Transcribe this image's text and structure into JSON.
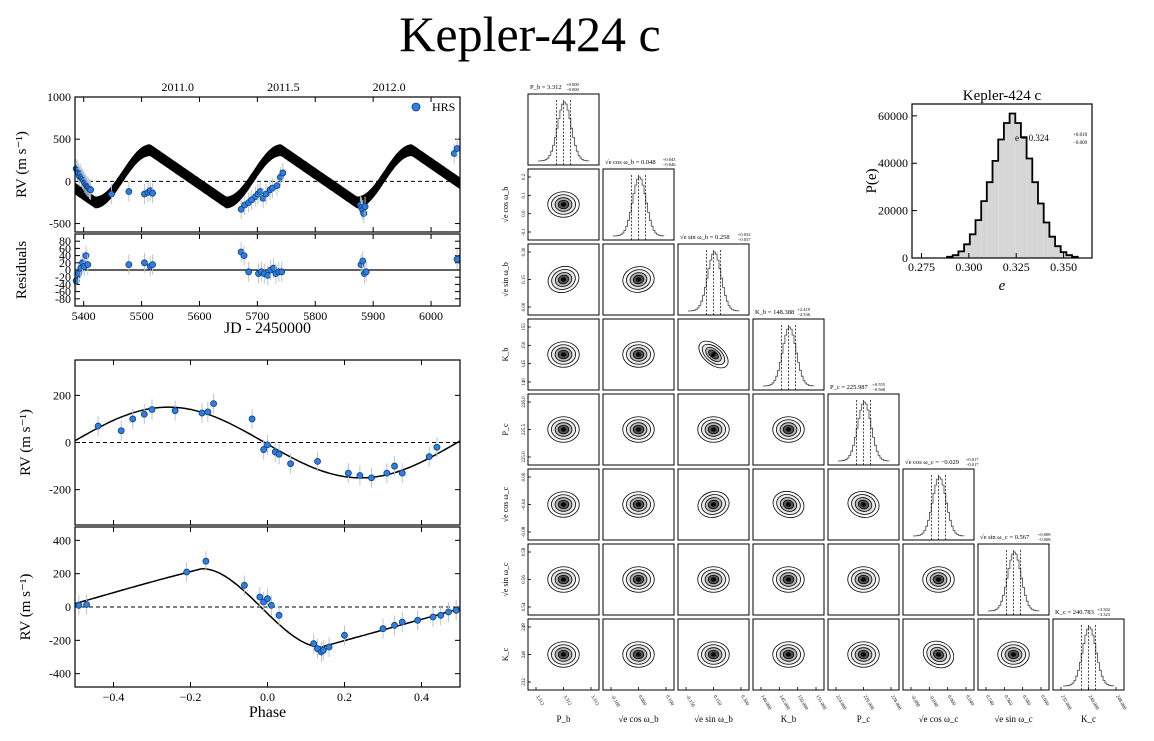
{
  "title": "Kepler-424 c",
  "chart_data": [
    {
      "id": "rv_timeseries",
      "type": "scatter",
      "title": "",
      "xlabel": "JD - 2450000",
      "ylabel": "RV (m s⁻¹)",
      "xlim": [
        5385,
        6050
      ],
      "ylim": [
        -600,
        1000
      ],
      "xticks": [
        5400,
        5500,
        5600,
        5700,
        5800,
        5900,
        6000
      ],
      "yticks": [
        -500,
        0,
        500,
        1000
      ],
      "top_axis_ticks": [
        {
          "jd": 5562.5,
          "label": "2011.0"
        },
        {
          "jd": 5745.0,
          "label": "2011.5"
        },
        {
          "jd": 5927.5,
          "label": "2012.0"
        }
      ],
      "legend": {
        "label": "HRS",
        "position": "top-right"
      },
      "color": "#2e7fe0",
      "series": [
        {
          "name": "HRS",
          "x": [
            5387,
            5389,
            5391,
            5393,
            5394,
            5396,
            5398,
            5400,
            5402,
            5404,
            5406,
            5408,
            5410,
            5412,
            5448,
            5478,
            5505,
            5511,
            5515,
            5519,
            5672,
            5678,
            5685,
            5690,
            5697,
            5701,
            5705,
            5710,
            5715,
            5722,
            5726,
            5734,
            5740,
            5744,
            5878,
            5880,
            5882,
            5884,
            5886,
            6040,
            6045
          ],
          "y": [
            150,
            130,
            100,
            60,
            90,
            50,
            30,
            10,
            -20,
            -40,
            -60,
            -70,
            -90,
            -100,
            -150,
            -120,
            -150,
            -130,
            -110,
            -140,
            -330,
            -280,
            -250,
            -220,
            -180,
            -150,
            -120,
            -200,
            -150,
            -100,
            -80,
            -50,
            50,
            100,
            -280,
            -310,
            -340,
            -380,
            -300,
            330,
            390
          ]
        }
      ]
    },
    {
      "id": "residuals",
      "type": "scatter",
      "xlabel": "JD - 2450000",
      "ylabel": "Residuals",
      "xlim": [
        5385,
        6050
      ],
      "ylim": [
        -100,
        100
      ],
      "xticks": [
        5400,
        5500,
        5600,
        5700,
        5800,
        5900,
        6000
      ],
      "yticks": [
        -80,
        -60,
        -40,
        -20,
        0,
        20,
        40,
        60,
        80
      ],
      "series": [
        {
          "name": "HRS",
          "x": [
            5387,
            5391,
            5395,
            5398,
            5401,
            5404,
            5407,
            5478,
            5505,
            5515,
            5519,
            5672,
            5677,
            5685,
            5702,
            5707,
            5712,
            5718,
            5723,
            5728,
            5732,
            5737,
            5742,
            5879,
            5882,
            5885,
            5888,
            6045
          ],
          "y": [
            -30,
            -10,
            5,
            20,
            10,
            40,
            15,
            15,
            20,
            10,
            15,
            50,
            40,
            -5,
            -10,
            -5,
            -10,
            -15,
            0,
            5,
            -10,
            -5,
            -5,
            15,
            25,
            -10,
            -5,
            30
          ]
        }
      ]
    },
    {
      "id": "phase_planet_c",
      "type": "scatter",
      "xlabel": "",
      "ylabel": "RV (m s⁻¹)",
      "xlim": [
        -0.5,
        0.5
      ],
      "ylim": [
        -350,
        350
      ],
      "xticks": [
        -0.4,
        -0.2,
        0.0,
        0.2,
        0.4
      ],
      "yticks": [
        -200,
        0,
        200
      ],
      "series": [
        {
          "name": "HRS",
          "x": [
            -0.44,
            -0.38,
            -0.35,
            -0.32,
            -0.3,
            -0.24,
            -0.17,
            -0.155,
            -0.14,
            -0.04,
            -0.01,
            0.0,
            0.02,
            0.03,
            0.06,
            0.13,
            0.21,
            0.24,
            0.27,
            0.31,
            0.33,
            0.35,
            0.42,
            0.44
          ],
          "y": [
            70,
            50,
            100,
            120,
            140,
            135,
            125,
            130,
            165,
            100,
            -30,
            -10,
            -40,
            -50,
            -90,
            -80,
            -130,
            -140,
            -150,
            -130,
            -100,
            -130,
            -60,
            -20
          ]
        }
      ]
    },
    {
      "id": "phase_planet_b",
      "type": "scatter",
      "xlabel": "Phase",
      "ylabel": "RV (m s⁻¹)",
      "xlim": [
        -0.5,
        0.5
      ],
      "ylim": [
        -480,
        480
      ],
      "xticks": [
        -0.4,
        -0.2,
        0.0,
        0.2,
        0.4
      ],
      "yticks": [
        -400,
        -200,
        0,
        200,
        400
      ],
      "series": [
        {
          "name": "HRS",
          "x": [
            -0.49,
            -0.47,
            -0.21,
            -0.16,
            -0.06,
            -0.02,
            -0.01,
            0.0,
            0.01,
            0.03,
            0.12,
            0.13,
            0.14,
            0.145,
            0.16,
            0.2,
            0.3,
            0.33,
            0.35,
            0.39,
            0.43,
            0.45,
            0.47,
            0.49
          ],
          "y": [
            10,
            15,
            210,
            275,
            130,
            60,
            30,
            50,
            10,
            -50,
            -220,
            -250,
            -270,
            -260,
            -240,
            -170,
            -130,
            -110,
            -90,
            -80,
            -60,
            -50,
            -30,
            -20
          ]
        }
      ]
    },
    {
      "id": "eccentricity_histogram",
      "type": "bar",
      "title": "Kepler-424 c",
      "xlabel": "e",
      "ylabel": "P(e)",
      "xlim": [
        0.27,
        0.365
      ],
      "ylim": [
        0,
        65000
      ],
      "xticks": [
        0.275,
        0.3,
        0.325,
        0.35
      ],
      "yticks": [
        0,
        20000,
        40000,
        60000
      ],
      "annotation": "e = 0.324",
      "annotation_sup": "+0.010",
      "annotation_sub": "−0.009",
      "bin_centers": [
        0.29,
        0.293,
        0.296,
        0.299,
        0.302,
        0.305,
        0.308,
        0.311,
        0.314,
        0.317,
        0.32,
        0.323,
        0.326,
        0.329,
        0.332,
        0.335,
        0.338,
        0.341,
        0.344,
        0.347,
        0.35,
        0.353,
        0.356
      ],
      "counts": [
        500,
        1200,
        2800,
        5800,
        10000,
        16000,
        24000,
        32000,
        41000,
        50000,
        57000,
        61000,
        57000,
        51000,
        42000,
        32000,
        23000,
        15000,
        9000,
        5000,
        2500,
        1200,
        500
      ]
    },
    {
      "id": "corner_plot",
      "type": "heatmap",
      "params": [
        {
          "label": "P_b",
          "axis_label": "P_b",
          "summary": "P_b = 3.312",
          "sup": "+0.000",
          "sub": "−0.000",
          "ticks": [
            "3.312",
            "3.312",
            "3.312"
          ]
        },
        {
          "label": "√e cos ω_b",
          "axis_label": "√e cos ω_b",
          "summary": "√e cos ω_b = 0.048",
          "sup": "+0.043",
          "sub": "−0.046",
          "ticks": [
            "-0.100",
            "0.000",
            "0.100"
          ]
        },
        {
          "label": "√e sin ω_b",
          "axis_label": "√e sin ω_b",
          "summary": "√e sin ω_b = 0.258",
          "sup": "+0.032",
          "sub": "−0.037",
          "ticks": [
            "-0.150",
            "0.150",
            "0.300"
          ]
        },
        {
          "label": "K_b",
          "axis_label": "K_b",
          "summary": "K_b = 148.388",
          "sup": "+2.419",
          "sub": "−2.336",
          "ticks": [
            "140.000",
            "145.000",
            "150.000",
            "155.000"
          ]
        },
        {
          "label": "P_c",
          "axis_label": "P_c",
          "summary": "P_c = 225.987",
          "sup": "+0.555",
          "sub": "−0.568",
          "ticks": [
            "224.000",
            "226.000",
            "228.000"
          ]
        },
        {
          "label": "√e cos ω_c",
          "axis_label": "√e cos ω_c",
          "summary": "√e cos ω_c = −0.029",
          "sup": "+0.017",
          "sub": "−0.017",
          "ticks": [
            "-0.080",
            "-0.040",
            "0.000",
            "0.040"
          ]
        },
        {
          "label": "√e sin ω_c",
          "axis_label": "√e sin ω_c",
          "summary": "√e sin ω_c = 0.567",
          "sup": "+0.008",
          "sub": "−0.008",
          "ticks": [
            "0.540",
            "0.560",
            "0.580",
            "0.600"
          ]
        },
        {
          "label": "K_c",
          "axis_label": "K_c",
          "summary": "K_c = 240.783",
          "sup": "+3.502",
          "sub": "−3.323",
          "ticks": [
            "232.000",
            "240.000",
            "248.000"
          ]
        }
      ],
      "y_ticks_per_row": [
        [],
        [
          "0.2",
          "0.1",
          "0.0",
          "-0.1"
        ],
        [
          "0.30",
          "0.15",
          "0.00"
        ],
        [
          "155",
          "150",
          "145",
          "140"
        ],
        [
          "226.0",
          "225.5",
          "225.0"
        ],
        [
          "0.00",
          "-0.04",
          "-0.08"
        ],
        [
          "0.58",
          "0.56",
          "0.54"
        ],
        [
          "248",
          "240",
          "232"
        ]
      ],
      "pair_tilt_deg": {
        "2_0": -20,
        "2_1": -10,
        "3_2": -50,
        "5_2": -15,
        "5_3": 20,
        "5_4": 15,
        "7_5": 25
      }
    }
  ]
}
